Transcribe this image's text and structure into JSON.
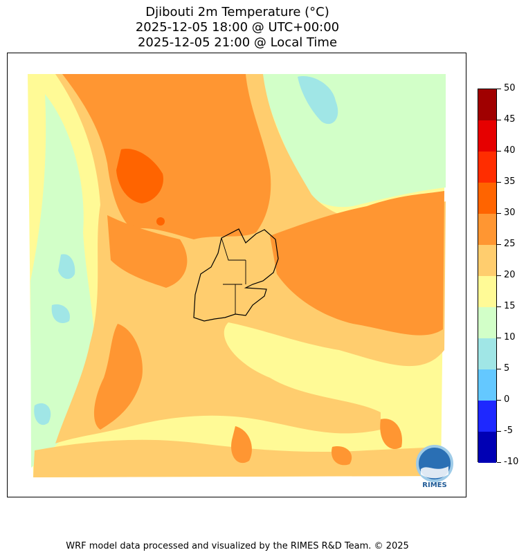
{
  "title": {
    "line1": "Djibouti 2m Temperature (°C)",
    "line2": "2025-12-05 18:00 @ UTC+00:00",
    "line3": "2025-12-05 21:00 @ Local Time"
  },
  "colorbar": {
    "levels": [
      -10,
      -5,
      0,
      5,
      10,
      15,
      20,
      25,
      30,
      35,
      40,
      45,
      50
    ],
    "tick_labels": [
      "-10",
      "-5",
      "0",
      "5",
      "10",
      "15",
      "20",
      "25",
      "30",
      "35",
      "40",
      "45",
      "50"
    ],
    "colors": [
      "#0000b4",
      "#1e28ff",
      "#64c8ff",
      "#a0e6e6",
      "#d2ffc8",
      "#fffa96",
      "#ffcd6e",
      "#ff9632",
      "#ff6400",
      "#ff2d00",
      "#e60000",
      "#a00000"
    ]
  },
  "logo": {
    "text": "RIMES"
  },
  "footer": "WRF model data processed and visualized by the RIMES R&D Team. © 2025"
}
